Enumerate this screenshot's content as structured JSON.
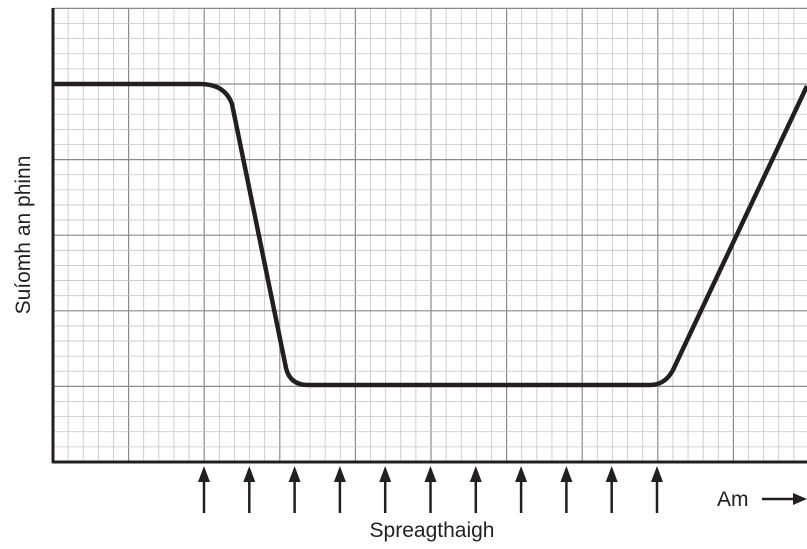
{
  "y_axis_label": "Suíomh an phinn",
  "stimulus_label": "Spreagthaigh",
  "time_label": "Am"
}
